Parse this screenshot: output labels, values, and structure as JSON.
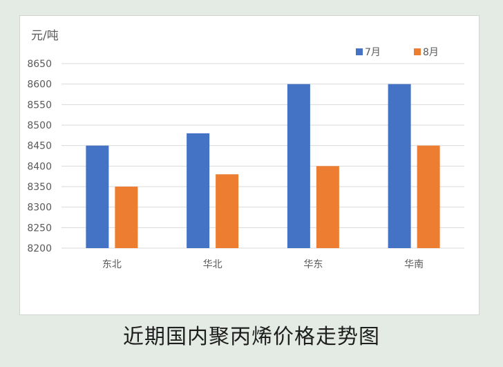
{
  "caption": "近期国内聚丙烯价格走势图",
  "chart_data": {
    "type": "bar",
    "title": "",
    "ylabel": "元/吨",
    "xlabel": "",
    "categories": [
      "东北",
      "华北",
      "华东",
      "华南"
    ],
    "series": [
      {
        "name": "7月",
        "values": [
          8450,
          8480,
          8600,
          8600
        ],
        "color": "#4472c4"
      },
      {
        "name": "8月",
        "values": [
          8350,
          8380,
          8400,
          8450
        ],
        "color": "#ed7d31"
      }
    ],
    "ylim": [
      8200,
      8650
    ],
    "yticks": [
      8200,
      8250,
      8300,
      8350,
      8400,
      8450,
      8500,
      8550,
      8600,
      8650
    ],
    "grid": true,
    "legend_position": "top-right"
  },
  "colors": {
    "gridline": "#d9d9d9",
    "axis_text": "#595959"
  }
}
